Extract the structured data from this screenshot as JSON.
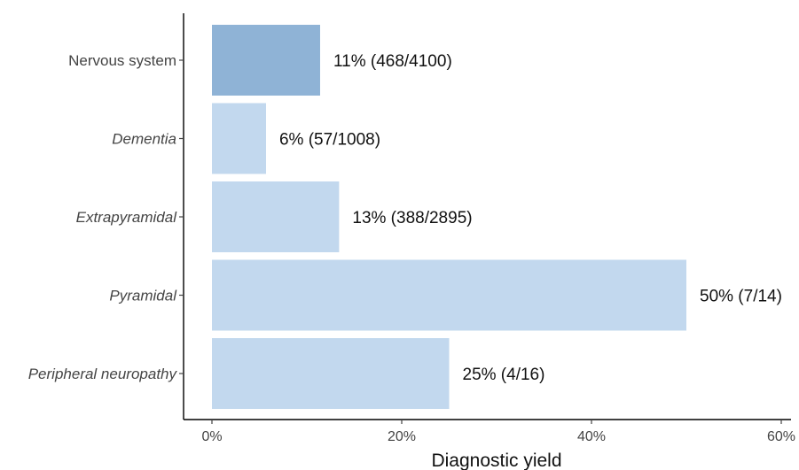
{
  "chart_data": {
    "type": "bar",
    "orientation": "horizontal",
    "categories": [
      {
        "label": "Nervous system",
        "italic": false
      },
      {
        "label": "Dementia",
        "italic": true
      },
      {
        "label": "Extrapyramidal",
        "italic": true
      },
      {
        "label": "Pyramidal",
        "italic": true
      },
      {
        "label": "Peripheral neuropathy",
        "italic": true
      }
    ],
    "values": [
      11.4,
      5.7,
      13.4,
      50,
      25
    ],
    "data_labels": [
      "11% (468/4100)",
      "6% (57/1008)",
      "13% (388/2895)",
      "50% (7/14)",
      "25% (4/16)"
    ],
    "colors": [
      "#8fb3d6",
      "#c2d8ee",
      "#c2d8ee",
      "#c2d8ee",
      "#c2d8ee"
    ],
    "xlabel": "Diagnostic yield",
    "ylabel": "",
    "xlim": [
      0,
      60
    ],
    "xticks": [
      0,
      20,
      40,
      60
    ],
    "xtick_labels": [
      "0%",
      "20%",
      "40%",
      "60%"
    ],
    "grid": false,
    "legend": "none"
  }
}
